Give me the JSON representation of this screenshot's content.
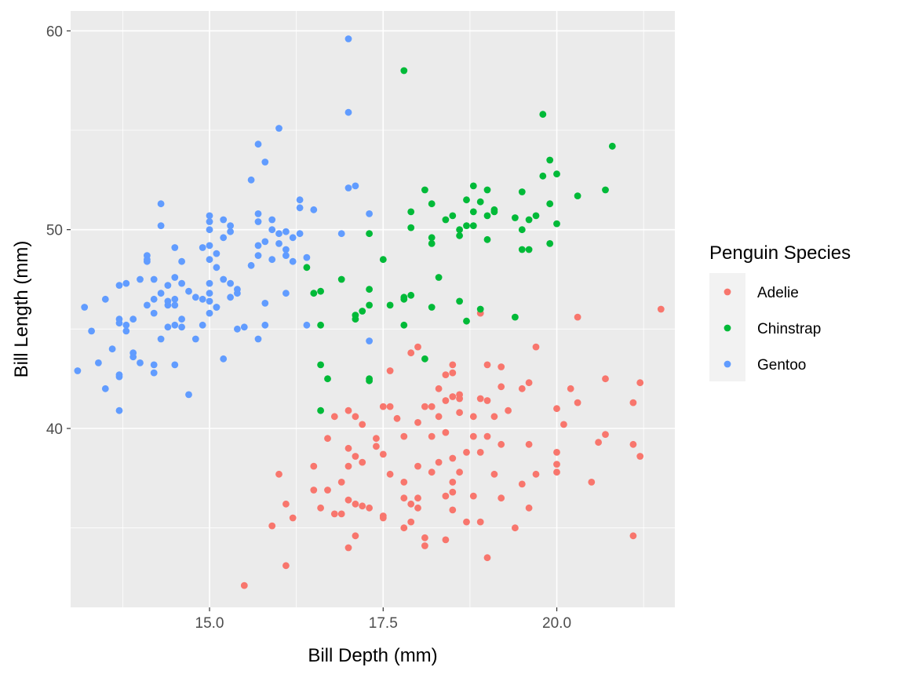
{
  "chart_data": {
    "type": "scatter",
    "title": "",
    "xlabel": "Bill Depth (mm)",
    "ylabel": "Bill Length (mm)",
    "xlim": [
      13.0,
      21.7
    ],
    "ylim": [
      31.0,
      61.0
    ],
    "x_ticks": [
      15.0,
      17.5,
      20.0
    ],
    "x_tick_labels": [
      "15.0",
      "17.5",
      "20.0"
    ],
    "x_minor_ticks": [
      13.75,
      16.25,
      18.75,
      21.25
    ],
    "y_ticks": [
      40,
      50,
      60
    ],
    "y_tick_labels": [
      "40",
      "50",
      "60"
    ],
    "y_minor_ticks": [
      35,
      45,
      55
    ],
    "grid": true,
    "background": "#EBEBEB",
    "legend": {
      "title": "Penguin Species",
      "position": "right",
      "entries": [
        "Adelie",
        "Chinstrap",
        "Gentoo"
      ]
    },
    "series": [
      {
        "name": "Adelie",
        "color": "#F8766D",
        "points": [
          [
            15.5,
            32.1
          ],
          [
            16.1,
            33.1
          ],
          [
            19.0,
            33.5
          ],
          [
            17.0,
            34.0
          ],
          [
            18.1,
            34.1
          ],
          [
            18.4,
            34.4
          ],
          [
            18.1,
            34.5
          ],
          [
            17.1,
            34.6
          ],
          [
            21.1,
            34.6
          ],
          [
            15.9,
            35.1
          ],
          [
            19.4,
            35.0
          ],
          [
            17.8,
            35.0
          ],
          [
            18.9,
            35.3
          ],
          [
            16.2,
            35.5
          ],
          [
            17.5,
            35.5
          ],
          [
            16.8,
            35.7
          ],
          [
            16.9,
            35.7
          ],
          [
            17.5,
            35.6
          ],
          [
            18.7,
            35.3
          ],
          [
            17.9,
            35.3
          ],
          [
            16.1,
            36.2
          ],
          [
            17.0,
            36.4
          ],
          [
            17.2,
            36.1
          ],
          [
            17.3,
            36.0
          ],
          [
            16.6,
            36.0
          ],
          [
            17.1,
            36.2
          ],
          [
            17.9,
            36.2
          ],
          [
            18.0,
            36.0
          ],
          [
            18.5,
            35.9
          ],
          [
            19.6,
            36.0
          ],
          [
            19.2,
            36.5
          ],
          [
            18.4,
            36.6
          ],
          [
            18.5,
            36.8
          ],
          [
            17.8,
            36.5
          ],
          [
            16.7,
            36.9
          ],
          [
            16.5,
            36.9
          ],
          [
            18.0,
            36.5
          ],
          [
            19.1,
            37.7
          ],
          [
            18.8,
            36.6
          ],
          [
            18.5,
            37.3
          ],
          [
            16.9,
            37.3
          ],
          [
            17.6,
            37.7
          ],
          [
            18.2,
            37.8
          ],
          [
            17.8,
            37.3
          ],
          [
            18.6,
            37.8
          ],
          [
            19.5,
            37.2
          ],
          [
            19.7,
            37.7
          ],
          [
            20.0,
            37.8
          ],
          [
            20.5,
            37.3
          ],
          [
            16.0,
            37.7
          ],
          [
            16.5,
            38.1
          ],
          [
            17.0,
            38.1
          ],
          [
            17.2,
            38.3
          ],
          [
            17.1,
            38.6
          ],
          [
            17.5,
            38.7
          ],
          [
            17.4,
            39.1
          ],
          [
            18.0,
            38.1
          ],
          [
            18.3,
            38.3
          ],
          [
            18.5,
            38.5
          ],
          [
            18.7,
            38.8
          ],
          [
            18.9,
            38.8
          ],
          [
            19.2,
            39.2
          ],
          [
            19.6,
            39.2
          ],
          [
            20.0,
            38.8
          ],
          [
            20.0,
            38.2
          ],
          [
            20.6,
            39.3
          ],
          [
            21.1,
            39.2
          ],
          [
            21.2,
            38.6
          ],
          [
            20.7,
            39.7
          ],
          [
            16.7,
            39.5
          ],
          [
            17.0,
            39.0
          ],
          [
            17.4,
            39.5
          ],
          [
            17.8,
            39.6
          ],
          [
            18.2,
            39.6
          ],
          [
            18.4,
            39.8
          ],
          [
            18.8,
            39.6
          ],
          [
            19.0,
            39.6
          ],
          [
            17.2,
            40.2
          ],
          [
            16.8,
            40.6
          ],
          [
            17.1,
            40.6
          ],
          [
            18.0,
            40.3
          ],
          [
            18.3,
            40.6
          ],
          [
            18.6,
            40.8
          ],
          [
            19.1,
            40.6
          ],
          [
            19.3,
            40.9
          ],
          [
            18.8,
            40.6
          ],
          [
            17.7,
            40.5
          ],
          [
            20.0,
            41.0
          ],
          [
            20.1,
            40.2
          ],
          [
            17.0,
            40.9
          ],
          [
            19.0,
            41.4
          ],
          [
            18.4,
            41.4
          ],
          [
            17.5,
            41.1
          ],
          [
            17.6,
            41.1
          ],
          [
            18.2,
            41.1
          ],
          [
            18.6,
            41.5
          ],
          [
            18.6,
            41.7
          ],
          [
            18.5,
            41.6
          ],
          [
            18.9,
            41.5
          ],
          [
            19.2,
            42.1
          ],
          [
            18.1,
            41.1
          ],
          [
            18.3,
            42.0
          ],
          [
            20.3,
            41.3
          ],
          [
            21.2,
            42.3
          ],
          [
            21.1,
            41.3
          ],
          [
            19.5,
            42.0
          ],
          [
            20.7,
            42.5
          ],
          [
            20.2,
            42.0
          ],
          [
            19.6,
            42.3
          ],
          [
            17.6,
            42.9
          ],
          [
            18.4,
            42.7
          ],
          [
            18.5,
            43.2
          ],
          [
            19.0,
            43.2
          ],
          [
            19.2,
            43.1
          ],
          [
            18.5,
            42.8
          ],
          [
            18.0,
            44.1
          ],
          [
            19.7,
            44.1
          ],
          [
            20.3,
            45.6
          ],
          [
            21.5,
            46.0
          ],
          [
            18.9,
            45.8
          ],
          [
            17.9,
            43.8
          ]
        ]
      },
      {
        "name": "Chinstrap",
        "color": "#00BA38",
        "points": [
          [
            16.6,
            40.9
          ],
          [
            16.7,
            42.5
          ],
          [
            16.6,
            43.2
          ],
          [
            17.3,
            42.4
          ],
          [
            17.3,
            42.5
          ],
          [
            18.1,
            43.5
          ],
          [
            16.6,
            45.2
          ],
          [
            16.5,
            46.8
          ],
          [
            16.6,
            46.9
          ],
          [
            16.4,
            48.1
          ],
          [
            16.9,
            47.5
          ],
          [
            17.1,
            45.5
          ],
          [
            17.1,
            45.7
          ],
          [
            17.2,
            45.9
          ],
          [
            17.3,
            46.2
          ],
          [
            17.6,
            46.2
          ],
          [
            17.8,
            46.6
          ],
          [
            17.9,
            46.7
          ],
          [
            17.8,
            46.5
          ],
          [
            17.8,
            45.2
          ],
          [
            18.2,
            46.1
          ],
          [
            18.3,
            47.6
          ],
          [
            18.6,
            46.4
          ],
          [
            18.7,
            45.4
          ],
          [
            18.9,
            46.0
          ],
          [
            19.4,
            45.6
          ],
          [
            17.5,
            48.5
          ],
          [
            17.3,
            49.8
          ],
          [
            17.3,
            47.0
          ],
          [
            17.9,
            50.9
          ],
          [
            17.9,
            50.1
          ],
          [
            18.1,
            52.0
          ],
          [
            18.2,
            51.3
          ],
          [
            18.2,
            49.6
          ],
          [
            18.2,
            49.3
          ],
          [
            18.4,
            50.5
          ],
          [
            18.5,
            50.7
          ],
          [
            18.6,
            49.7
          ],
          [
            18.7,
            50.2
          ],
          [
            18.7,
            51.5
          ],
          [
            18.8,
            52.2
          ],
          [
            18.8,
            50.9
          ],
          [
            18.8,
            50.2
          ],
          [
            18.9,
            51.4
          ],
          [
            19.0,
            52.0
          ],
          [
            19.0,
            49.5
          ],
          [
            19.0,
            50.7
          ],
          [
            19.1,
            50.9
          ],
          [
            19.1,
            51.0
          ],
          [
            19.4,
            50.6
          ],
          [
            19.5,
            51.9
          ],
          [
            19.5,
            50.0
          ],
          [
            19.5,
            49.0
          ],
          [
            19.6,
            49.0
          ],
          [
            19.6,
            50.5
          ],
          [
            19.7,
            50.7
          ],
          [
            19.8,
            52.7
          ],
          [
            19.9,
            51.3
          ],
          [
            19.9,
            49.3
          ],
          [
            19.9,
            53.5
          ],
          [
            20.0,
            52.8
          ],
          [
            20.0,
            50.3
          ],
          [
            20.3,
            51.7
          ],
          [
            20.7,
            52.0
          ],
          [
            20.8,
            54.2
          ],
          [
            19.8,
            55.8
          ],
          [
            17.8,
            58.0
          ],
          [
            18.6,
            50.0
          ]
        ]
      },
      {
        "name": "Gentoo",
        "color": "#619CFF",
        "points": [
          [
            13.1,
            42.9
          ],
          [
            13.2,
            46.1
          ],
          [
            13.3,
            44.9
          ],
          [
            13.4,
            43.3
          ],
          [
            13.5,
            46.5
          ],
          [
            13.5,
            42.0
          ],
          [
            13.6,
            44.0
          ],
          [
            13.7,
            40.9
          ],
          [
            13.7,
            42.6
          ],
          [
            13.7,
            42.7
          ],
          [
            13.7,
            45.3
          ],
          [
            13.7,
            45.5
          ],
          [
            13.7,
            47.2
          ],
          [
            13.8,
            47.3
          ],
          [
            13.8,
            45.2
          ],
          [
            13.8,
            44.9
          ],
          [
            13.9,
            45.5
          ],
          [
            13.9,
            43.6
          ],
          [
            13.9,
            43.8
          ],
          [
            14.0,
            47.5
          ],
          [
            14.0,
            43.3
          ],
          [
            14.1,
            46.2
          ],
          [
            14.1,
            48.7
          ],
          [
            14.1,
            48.4
          ],
          [
            14.2,
            47.5
          ],
          [
            14.2,
            46.5
          ],
          [
            14.2,
            42.8
          ],
          [
            14.2,
            43.2
          ],
          [
            14.2,
            45.8
          ],
          [
            14.3,
            46.8
          ],
          [
            14.3,
            44.5
          ],
          [
            14.3,
            50.2
          ],
          [
            14.4,
            47.2
          ],
          [
            14.4,
            45.1
          ],
          [
            14.4,
            46.2
          ],
          [
            14.4,
            46.4
          ],
          [
            14.5,
            45.2
          ],
          [
            14.5,
            46.2
          ],
          [
            14.5,
            46.5
          ],
          [
            14.5,
            47.6
          ],
          [
            14.5,
            49.1
          ],
          [
            14.5,
            43.2
          ],
          [
            14.6,
            45.5
          ],
          [
            14.6,
            45.1
          ],
          [
            14.6,
            47.3
          ],
          [
            14.6,
            48.4
          ],
          [
            14.7,
            46.9
          ],
          [
            14.7,
            41.7
          ],
          [
            14.8,
            44.5
          ],
          [
            14.9,
            45.2
          ],
          [
            14.9,
            49.1
          ],
          [
            14.9,
            46.5
          ],
          [
            15.0,
            48.5
          ],
          [
            15.0,
            49.2
          ],
          [
            15.0,
            50.0
          ],
          [
            15.0,
            45.8
          ],
          [
            15.0,
            46.8
          ],
          [
            15.0,
            46.4
          ],
          [
            15.0,
            47.3
          ],
          [
            15.0,
            50.4
          ],
          [
            15.0,
            50.7
          ],
          [
            15.1,
            46.1
          ],
          [
            15.1,
            46.1
          ],
          [
            15.1,
            48.1
          ],
          [
            15.2,
            43.5
          ],
          [
            15.2,
            49.6
          ],
          [
            15.2,
            50.5
          ],
          [
            15.2,
            47.5
          ],
          [
            15.3,
            46.6
          ],
          [
            15.3,
            47.3
          ],
          [
            15.3,
            50.2
          ],
          [
            15.3,
            49.9
          ],
          [
            15.4,
            46.8
          ],
          [
            15.4,
            45.0
          ],
          [
            15.5,
            45.1
          ],
          [
            15.7,
            44.5
          ],
          [
            15.6,
            48.2
          ],
          [
            15.6,
            52.5
          ],
          [
            15.7,
            49.2
          ],
          [
            15.7,
            48.7
          ],
          [
            15.7,
            50.8
          ],
          [
            15.7,
            50.4
          ],
          [
            15.8,
            49.4
          ],
          [
            15.8,
            45.2
          ],
          [
            15.8,
            46.3
          ],
          [
            15.8,
            53.4
          ],
          [
            15.9,
            48.5
          ],
          [
            15.9,
            50.5
          ],
          [
            15.9,
            50.0
          ],
          [
            16.0,
            49.3
          ],
          [
            16.0,
            49.8
          ],
          [
            16.0,
            55.1
          ],
          [
            16.1,
            48.7
          ],
          [
            16.1,
            49.0
          ],
          [
            16.1,
            49.9
          ],
          [
            16.1,
            46.8
          ],
          [
            16.2,
            49.6
          ],
          [
            16.2,
            48.4
          ],
          [
            16.3,
            51.1
          ],
          [
            16.3,
            51.5
          ],
          [
            16.3,
            49.8
          ],
          [
            16.4,
            45.2
          ],
          [
            16.5,
            51.0
          ],
          [
            16.4,
            48.6
          ],
          [
            15.7,
            54.3
          ],
          [
            14.3,
            51.3
          ],
          [
            16.9,
            49.8
          ],
          [
            17.0,
            52.1
          ],
          [
            17.1,
            52.2
          ],
          [
            17.3,
            50.8
          ],
          [
            17.0,
            55.9
          ],
          [
            17.0,
            59.6
          ],
          [
            17.3,
            44.4
          ],
          [
            14.1,
            48.5
          ],
          [
            15.4,
            47.0
          ],
          [
            14.8,
            46.6
          ],
          [
            15.1,
            48.8
          ]
        ]
      }
    ]
  }
}
